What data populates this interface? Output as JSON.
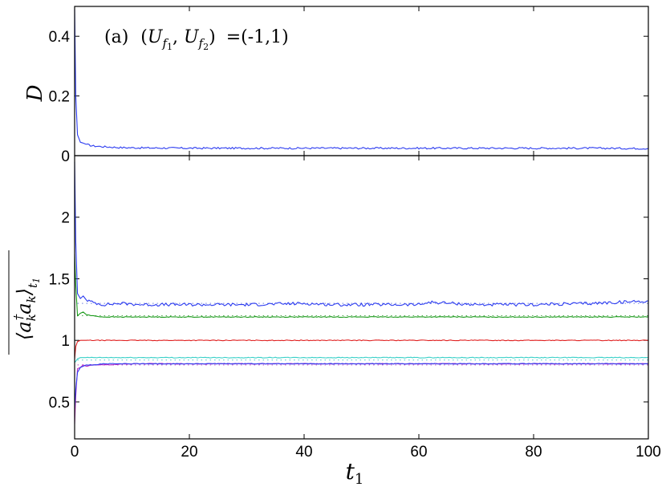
{
  "chart_data": [
    {
      "type": "line",
      "panel": "top",
      "annotation": "(a) (U_{f_1},U_{f_2}) =(-1,1)",
      "annotation_parts": {
        "prefix": "(a)",
        "u1": "U",
        "u1_sub": "f",
        "u1_subsub": "1",
        "u2": "U",
        "u2_sub": "f",
        "u2_subsub": "2",
        "value": "=(-1,1)"
      },
      "ylabel": "D",
      "xlim": [
        0,
        100
      ],
      "ylim": [
        0,
        0.5
      ],
      "yticks": [
        0,
        0.2,
        0.4
      ],
      "ytick_labels": [
        "0",
        "0.2",
        "0.4"
      ],
      "series": [
        {
          "color": "#2b3bf0",
          "x": [
            0,
            0.2,
            0.5,
            1,
            1.5,
            2,
            3,
            5,
            8,
            12,
            20,
            30,
            40,
            50,
            60,
            70,
            80,
            90,
            100
          ],
          "y": [
            0.49,
            0.2,
            0.07,
            0.045,
            0.042,
            0.038,
            0.033,
            0.03,
            0.027,
            0.026,
            0.025,
            0.025,
            0.025,
            0.025,
            0.025,
            0.025,
            0.025,
            0.025,
            0.024
          ]
        }
      ]
    },
    {
      "type": "line",
      "panel": "bottom",
      "ylabel": "⟨a_k^† a_k⟩_{t_1}",
      "ylabel_parts": {
        "main": "⟨a",
        "sub": "k",
        "sup": "†",
        "mid": "a",
        "sub2": "k",
        "close": "⟩",
        "outer_sub": "t",
        "outer_subsub": "1"
      },
      "xlabel": "t_1",
      "xlabel_parts": {
        "main": "t",
        "sub": "1"
      },
      "xlim": [
        0,
        100
      ],
      "ylim": [
        0.2,
        2.5
      ],
      "xticks": [
        0,
        20,
        40,
        60,
        80,
        100
      ],
      "xtick_labels": [
        "0",
        "20",
        "40",
        "60",
        "80",
        "100"
      ],
      "yticks": [
        0.5,
        1,
        1.5,
        2
      ],
      "ytick_labels": [
        "0.5",
        "1",
        "1.5",
        "2"
      ],
      "series": [
        {
          "color": "#2b3bf0",
          "x": [
            0,
            0.2,
            0.5,
            1,
            1.5,
            2,
            3,
            5,
            8,
            12,
            20,
            30,
            40,
            45,
            50,
            60,
            62,
            70,
            80,
            90,
            100
          ],
          "y": [
            2.45,
            1.8,
            1.38,
            1.34,
            1.36,
            1.33,
            1.31,
            1.29,
            1.3,
            1.29,
            1.29,
            1.29,
            1.3,
            1.29,
            1.29,
            1.29,
            1.31,
            1.29,
            1.29,
            1.3,
            1.32
          ]
        },
        {
          "color": "#1a9a1a",
          "x": [
            0,
            0.2,
            0.5,
            1,
            1.5,
            2,
            3,
            5,
            8,
            12,
            20,
            30,
            40,
            50,
            60,
            70,
            80,
            90,
            100
          ],
          "y": [
            1.7,
            1.45,
            1.2,
            1.22,
            1.23,
            1.21,
            1.2,
            1.19,
            1.19,
            1.19,
            1.19,
            1.19,
            1.19,
            1.19,
            1.19,
            1.19,
            1.19,
            1.19,
            1.19
          ]
        },
        {
          "color": "#e02020",
          "x": [
            0,
            0.2,
            0.5,
            1,
            1.5,
            2,
            3,
            5,
            10,
            20,
            40,
            60,
            80,
            100
          ],
          "y": [
            0.85,
            0.95,
            0.99,
            1.0,
            1.0,
            1.0,
            1.0,
            1.0,
            1.0,
            1.0,
            1.0,
            1.0,
            1.0,
            1.0
          ]
        },
        {
          "color": "#38d0c8",
          "x": [
            0,
            0.2,
            0.5,
            1,
            1.5,
            2,
            3,
            5,
            10,
            20,
            40,
            60,
            80,
            100
          ],
          "y": [
            0.82,
            0.83,
            0.85,
            0.86,
            0.86,
            0.86,
            0.86,
            0.86,
            0.86,
            0.86,
            0.86,
            0.86,
            0.86,
            0.86
          ]
        },
        {
          "color": "#c030c8",
          "x": [
            0,
            0.2,
            0.5,
            1,
            1.5,
            2,
            3,
            5,
            10,
            20,
            40,
            60,
            80,
            100
          ],
          "y": [
            0.32,
            0.55,
            0.77,
            0.78,
            0.8,
            0.79,
            0.8,
            0.8,
            0.81,
            0.81,
            0.81,
            0.81,
            0.81,
            0.81
          ]
        },
        {
          "color": "#2b3bf0",
          "x": [
            0,
            0.2,
            0.5,
            1,
            1.5,
            2,
            3,
            5,
            10,
            20,
            40,
            60,
            80,
            100
          ],
          "y": [
            0.45,
            0.6,
            0.74,
            0.78,
            0.79,
            0.8,
            0.8,
            0.81,
            0.81,
            0.81,
            0.81,
            0.81,
            0.81,
            0.81
          ]
        }
      ],
      "reference_lines": [
        {
          "y": 1.3,
          "color": "#6a7bdc",
          "style": "dotted"
        },
        {
          "y": 1.2,
          "color": "#4aa84a",
          "style": "dotted"
        },
        {
          "y": 0.84,
          "color": "#40c8c0",
          "style": "dotted"
        },
        {
          "y": 0.8,
          "color": "#b040c0",
          "style": "dotted"
        }
      ]
    }
  ]
}
